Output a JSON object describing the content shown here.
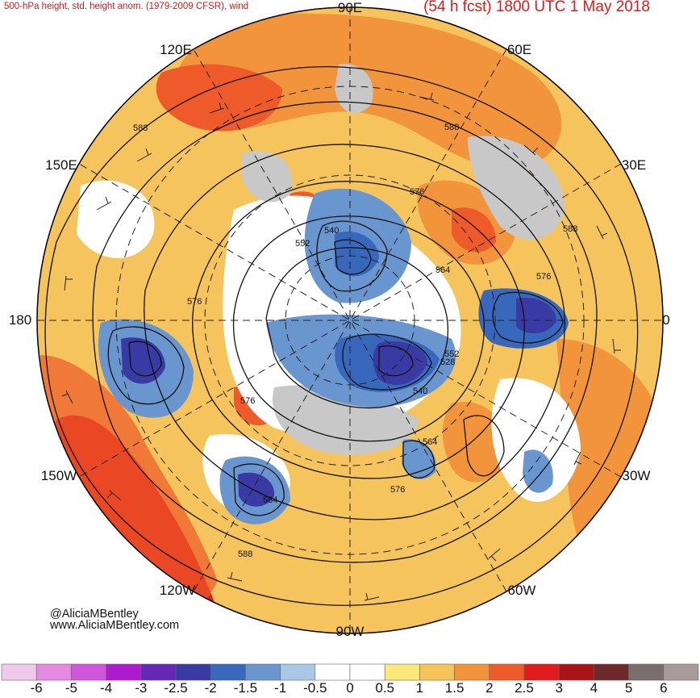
{
  "header": {
    "left_title": "500-hPa height, std. height anom. (1979-2009 CFSR), wind",
    "right_title": "(54 h fcst) 1800 UTC 1 May 2018"
  },
  "credits": {
    "twitter": "@AliciaMBentley",
    "website": "www.AliciaMBentley.com"
  },
  "longitude_labels": {
    "n90e": "90E",
    "n60e": "60E",
    "n30e": "30E",
    "zero": "0",
    "n30w": "30W",
    "n60w": "60W",
    "n90w": "90W",
    "n120w": "120W",
    "n150w": "150W",
    "n180": "180",
    "n150e": "150E",
    "n120e": "120E"
  },
  "contour_labels": {
    "c588_a": "588",
    "c588_b": "588",
    "c588_c": "588",
    "c588_d": "588",
    "c576_a": "576",
    "c576_b": "576",
    "c576_c": "576",
    "c576_d": "576",
    "c576_e": "576",
    "c564_a": "564",
    "c564_b": "564",
    "c564_c": "564",
    "c552_a": "552",
    "c552_b": "552",
    "c540_a": "540",
    "c540_b": "540",
    "c528": "528"
  },
  "colorbar": {
    "labels": [
      "-6",
      "-5",
      "-4",
      "-3",
      "-2.5",
      "-2",
      "-1.5",
      "-1",
      "-0.5",
      "0",
      "0.5",
      "1",
      "1.5",
      "2",
      "2.5",
      "3",
      "4",
      "5",
      "6"
    ],
    "colors": [
      "#f0c8ec",
      "#e48ae0",
      "#d056de",
      "#ad1ccc",
      "#6428b4",
      "#3a3aa4",
      "#3868bc",
      "#6a96cf",
      "#a8c8e6",
      "#ffffff",
      "#ffffff",
      "#fbe77a",
      "#f7c45a",
      "#f2943c",
      "#ee5a2a",
      "#e21c1c",
      "#a81414",
      "#6e2a2a",
      "#7a6e6e",
      "#a89a9a"
    ]
  }
}
